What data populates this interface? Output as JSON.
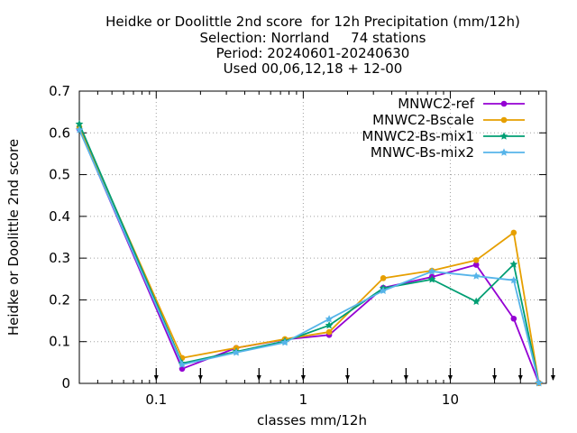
{
  "chart_data": {
    "type": "line",
    "title_lines": [
      "Heidke or Doolittle 2nd score  for 12h Precipitation (mm/12h)",
      "Selection: Norrland     74 stations",
      "Period: 20240601-20240630",
      "Used 00,06,12,18 + 12-00"
    ],
    "xlabel": "classes mm/12h",
    "ylabel": "Heidke or Doolittle 2nd score",
    "x_scale": "log",
    "xlim": [
      0.03,
      45
    ],
    "ylim": [
      0,
      0.7
    ],
    "x_ticks": [
      0.1,
      1,
      10
    ],
    "x_tick_labels": [
      "0.1",
      "1",
      "10"
    ],
    "y_ticks": [
      0,
      0.1,
      0.2,
      0.3,
      0.4,
      0.5,
      0.6,
      0.7
    ],
    "y_tick_labels": [
      "0",
      "0.1",
      "0.2",
      "0.3",
      "0.4",
      "0.5",
      "0.6",
      "0.7"
    ],
    "threshold_arrows": [
      0.1,
      0.2,
      0.5,
      1,
      2,
      5,
      10,
      20,
      30,
      50
    ],
    "grid": true,
    "legend_position": "top-right",
    "x": [
      0.03,
      0.15,
      0.35,
      0.75,
      1.5,
      3.5,
      7.5,
      15,
      27,
      40
    ],
    "series": [
      {
        "name": "MNWC2-ref",
        "color": "#9400d3",
        "marker": "circle",
        "values": [
          0.609,
          0.035,
          0.085,
          0.105,
          0.116,
          0.229,
          0.255,
          0.284,
          0.155,
          0.001
        ]
      },
      {
        "name": "MNWC2-Bscale",
        "color": "#e69f00",
        "marker": "circle",
        "values": [
          0.614,
          0.061,
          0.085,
          0.106,
          0.123,
          0.252,
          0.27,
          0.295,
          0.361,
          0.001
        ]
      },
      {
        "name": "MNWC2-Bs-mix1",
        "color": "#009e73",
        "marker": "star",
        "values": [
          0.621,
          0.048,
          0.076,
          0.101,
          0.139,
          0.228,
          0.249,
          0.196,
          0.285,
          0.001
        ]
      },
      {
        "name": "MNWC-Bs-mix2",
        "color": "#56b4e9",
        "marker": "star",
        "values": [
          0.607,
          0.045,
          0.074,
          0.098,
          0.154,
          0.222,
          0.268,
          0.257,
          0.247,
          0.001
        ]
      }
    ]
  }
}
